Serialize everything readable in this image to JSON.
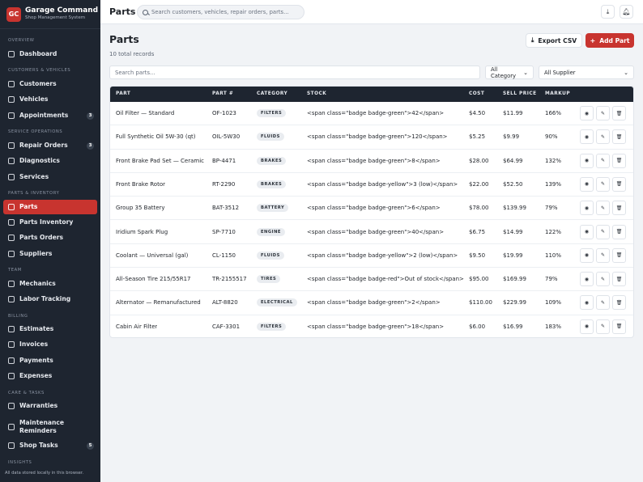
{
  "brand": {
    "logo": "GC",
    "name": "Garage Command",
    "subtitle": "Shop Management System"
  },
  "sidebar": {
    "sections": [
      {
        "label": "Overview"
      },
      {
        "label": "Customers & Vehicles"
      },
      {
        "label": "Service Operations"
      },
      {
        "label": "Parts & Inventory"
      },
      {
        "label": "Team"
      },
      {
        "label": "Billing"
      },
      {
        "label": "Care & Tasks"
      },
      {
        "label": "Insights"
      }
    ],
    "items": [
      {
        "label": "Dashboard",
        "icon": "dashboard-icon"
      },
      {
        "label": "Customers",
        "icon": "users-icon"
      },
      {
        "label": "Vehicles",
        "icon": "car-icon"
      },
      {
        "label": "Appointments",
        "icon": "calendar-icon",
        "badge": "3"
      },
      {
        "label": "Repair Orders",
        "icon": "clipboard-icon",
        "badge": "3"
      },
      {
        "label": "Diagnostics",
        "icon": "diagnostics-icon"
      },
      {
        "label": "Services",
        "icon": "wrench-icon"
      },
      {
        "label": "Parts",
        "icon": "gear-icon",
        "active": true
      },
      {
        "label": "Parts Inventory",
        "icon": "boxes-icon"
      },
      {
        "label": "Parts Orders",
        "icon": "truck-icon"
      },
      {
        "label": "Suppliers",
        "icon": "building-icon"
      },
      {
        "label": "Mechanics",
        "icon": "id-card-icon"
      },
      {
        "label": "Labor Tracking",
        "icon": "clock-icon"
      },
      {
        "label": "Estimates",
        "icon": "calculator-icon"
      },
      {
        "label": "Invoices",
        "icon": "invoice-icon"
      },
      {
        "label": "Payments",
        "icon": "credit-card-icon"
      },
      {
        "label": "Expenses",
        "icon": "receipt-icon"
      },
      {
        "label": "Warranties",
        "icon": "shield-icon"
      },
      {
        "label": "Maintenance\nReminders",
        "icon": "bell-icon"
      },
      {
        "label": "Shop Tasks",
        "icon": "checklist-icon",
        "badge": "5"
      }
    ],
    "footer": "All data stored locally in this browser."
  },
  "topbar": {
    "title": "Parts",
    "search_placeholder": "Search customers, vehicles, repair orders, parts...",
    "download_icon": "download-icon",
    "notification_icon": "bell-icon"
  },
  "main": {
    "heading": "Parts",
    "record_count": "10 total records",
    "export_label": "Export CSV",
    "add_label": "Add Part",
    "filter_placeholder": "Search parts...",
    "category_filter": "All Category",
    "supplier_filter": "All Supplier"
  },
  "table": {
    "columns": [
      "PART",
      "PART #",
      "CATEGORY",
      "STOCK",
      "COST",
      "SELL PRICE",
      "MARKUP"
    ],
    "rows": [
      {
        "part": "Oil Filter — Standard",
        "number": "OF-1023",
        "category": "FILTERS",
        "stock": "<span class=\"badge badge-green\">42</span>",
        "cost": "$4.50",
        "price": "$11.99",
        "markup": "166%"
      },
      {
        "part": "Full Synthetic Oil 5W-30 (qt)",
        "number": "OIL-5W30",
        "category": "FLUIDS",
        "stock": "<span class=\"badge badge-green\">120</span>",
        "cost": "$5.25",
        "price": "$9.99",
        "markup": "90%"
      },
      {
        "part": "Front Brake Pad Set — Ceramic",
        "number": "BP-4471",
        "category": "BRAKES",
        "stock": "<span class=\"badge badge-green\">8</span>",
        "cost": "$28.00",
        "price": "$64.99",
        "markup": "132%"
      },
      {
        "part": "Front Brake Rotor",
        "number": "RT-2290",
        "category": "BRAKES",
        "stock": "<span class=\"badge badge-yellow\">3 (low)</span>",
        "cost": "$22.00",
        "price": "$52.50",
        "markup": "139%"
      },
      {
        "part": "Group 35 Battery",
        "number": "BAT-3512",
        "category": "BATTERY",
        "stock": "<span class=\"badge badge-green\">6</span>",
        "cost": "$78.00",
        "price": "$139.99",
        "markup": "79%"
      },
      {
        "part": "Iridium Spark Plug",
        "number": "SP-7710",
        "category": "ENGINE",
        "stock": "<span class=\"badge badge-green\">40</span>",
        "cost": "$6.75",
        "price": "$14.99",
        "markup": "122%"
      },
      {
        "part": "Coolant — Universal (gal)",
        "number": "CL-1150",
        "category": "FLUIDS",
        "stock": "<span class=\"badge badge-yellow\">2 (low)</span>",
        "cost": "$9.50",
        "price": "$19.99",
        "markup": "110%"
      },
      {
        "part": "All-Season Tire 215/55R17",
        "number": "TR-2155517",
        "category": "TIRES",
        "stock": "<span class=\"badge badge-red\">Out of stock</span>",
        "cost": "$95.00",
        "price": "$169.99",
        "markup": "79%"
      },
      {
        "part": "Alternator — Remanufactured",
        "number": "ALT-8820",
        "category": "ELECTRICAL",
        "stock": "<span class=\"badge badge-green\">2</span>",
        "cost": "$110.00",
        "price": "$229.99",
        "markup": "109%"
      },
      {
        "part": "Cabin Air Filter",
        "number": "CAF-3301",
        "category": "FILTERS",
        "stock": "<span class=\"badge badge-green\">18</span>",
        "cost": "$6.00",
        "price": "$16.99",
        "markup": "183%"
      }
    ]
  },
  "row_action_icons": [
    "eye-icon",
    "pencil-icon",
    "trash-icon"
  ],
  "colors": {
    "accent": "#c8342f",
    "sidebar": "#1e2530",
    "background": "#f1f3f6"
  }
}
